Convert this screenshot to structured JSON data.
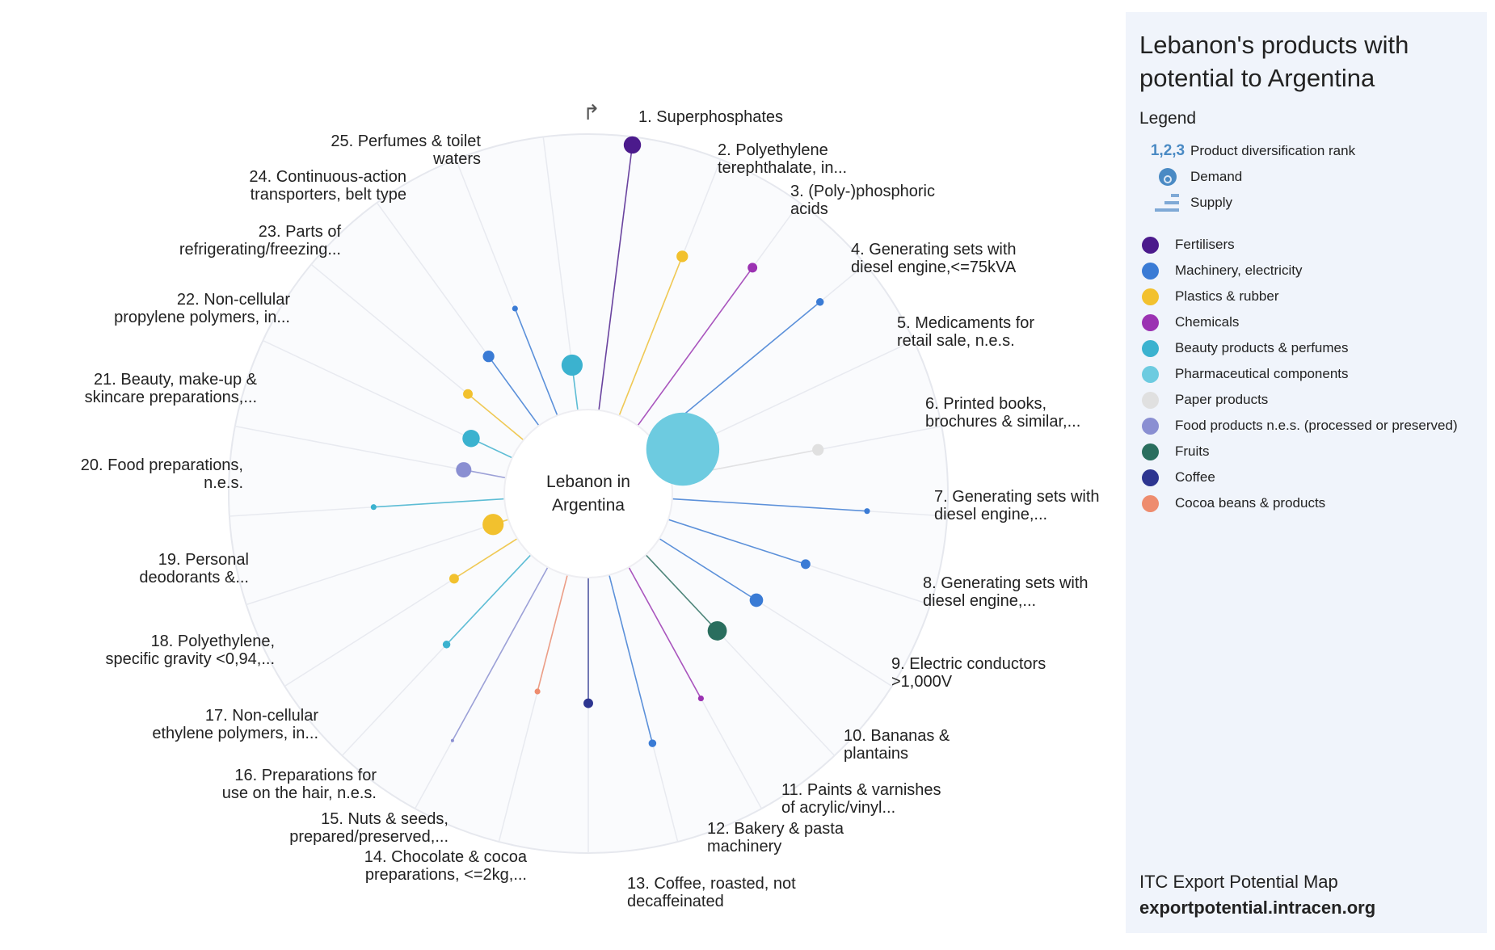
{
  "center_label": [
    "Lebanon in",
    "Argentina"
  ],
  "panel": {
    "title": "Lebanon's products with potential to Argentina",
    "legend_heading": "Legend",
    "keys": [
      {
        "icon": "rank-number-icon",
        "symbol": "1,2,3",
        "label": "Product diversification rank"
      },
      {
        "icon": "demand-bubble-icon",
        "label": "Demand"
      },
      {
        "icon": "supply-bars-icon",
        "label": "Supply"
      }
    ],
    "categories": [
      {
        "name": "Fertilisers",
        "color": "#4b1a8c"
      },
      {
        "name": "Machinery, electricity",
        "color": "#3a7bd5"
      },
      {
        "name": "Plastics & rubber",
        "color": "#f2c12e"
      },
      {
        "name": "Chemicals",
        "color": "#9b32b2"
      },
      {
        "name": "Beauty products & perfumes",
        "color": "#3bb2cf"
      },
      {
        "name": "Pharmaceutical components",
        "color": "#6dcbe0"
      },
      {
        "name": "Paper products",
        "color": "#e0e0e0"
      },
      {
        "name": "Food products n.e.s. (processed or preserved)",
        "color": "#8a8fd2"
      },
      {
        "name": "Fruits",
        "color": "#2a6e5e"
      },
      {
        "name": "Coffee",
        "color": "#2d3590"
      },
      {
        "name": "Cocoa beans & products",
        "color": "#ee8c6e"
      }
    ],
    "source": "ITC Export Potential Map",
    "url": "exportpotential.intracen.org"
  },
  "chart_data": {
    "type": "radial-bubble",
    "title": "Lebanon's products with potential to Argentina",
    "encoding": {
      "angle": "product diversification rank",
      "radius": "supply (0-1 relative)",
      "size": "demand (relative)"
    },
    "products": [
      {
        "rank": 1,
        "lines": [
          "1. Superphosphates"
        ],
        "category": "Fertilisers",
        "supply": 1.0,
        "demand": 9
      },
      {
        "rank": 2,
        "lines": [
          "2. Polyethylene",
          "terephthalate, in..."
        ],
        "category": "Plastics & rubber",
        "supply": 0.64,
        "demand": 6
      },
      {
        "rank": 3,
        "lines": [
          "3. (Poly-)phosphoric",
          "acids"
        ],
        "category": "Chemicals",
        "supply": 0.73,
        "demand": 5
      },
      {
        "rank": 4,
        "lines": [
          "4. Generating sets with",
          "diesel engine,<=75kVA"
        ],
        "category": "Machinery, electricity",
        "supply": 0.81,
        "demand": 4
      },
      {
        "rank": 5,
        "lines": [
          "5. Medicaments for",
          "retail sale, n.e.s."
        ],
        "category": "Pharmaceutical components",
        "supply": 0.0,
        "demand": 38
      },
      {
        "rank": 6,
        "lines": [
          "6. Printed books,",
          "brochures & similar,..."
        ],
        "category": "Paper products",
        "supply": 0.56,
        "demand": 6
      },
      {
        "rank": 7,
        "lines": [
          "7. Generating sets with",
          "diesel engine,..."
        ],
        "category": "Machinery, electricity",
        "supply": 0.73,
        "demand": 3
      },
      {
        "rank": 8,
        "lines": [
          "8. Generating sets with",
          "diesel engine,..."
        ],
        "category": "Machinery, electricity",
        "supply": 0.54,
        "demand": 5
      },
      {
        "rank": 9,
        "lines": [
          "9. Electric conductors",
          ">1,000V"
        ],
        "category": "Machinery, electricity",
        "supply": 0.43,
        "demand": 7
      },
      {
        "rank": 10,
        "lines": [
          "10. Bananas &",
          "plantains"
        ],
        "category": "Fruits",
        "supply": 0.39,
        "demand": 10
      },
      {
        "rank": 11,
        "lines": [
          "11. Paints & varnishes",
          "of acrylic/vinyl..."
        ],
        "category": "Chemicals",
        "supply": 0.56,
        "demand": 3
      },
      {
        "rank": 12,
        "lines": [
          "12. Bakery & pasta",
          "machinery"
        ],
        "category": "Machinery, electricity",
        "supply": 0.65,
        "demand": 4
      },
      {
        "rank": 13,
        "lines": [
          "13. Coffee, roasted, not",
          "decaffeinated"
        ],
        "category": "Coffee",
        "supply": 0.47,
        "demand": 5
      },
      {
        "rank": 14,
        "lines": [
          "14. Chocolate & cocoa",
          "preparations, <=2kg,..."
        ],
        "category": "Cocoa beans & products",
        "supply": 0.45,
        "demand": 3
      },
      {
        "rank": 15,
        "lines": [
          "15. Nuts & seeds,",
          "prepared/preserved,..."
        ],
        "category": "Food products n.e.s. (processed or preserved)",
        "supply": 0.74,
        "demand": 1
      },
      {
        "rank": 16,
        "lines": [
          "16. Preparations for",
          "use on the hair, n.e.s."
        ],
        "category": "Beauty products & perfumes",
        "supply": 0.46,
        "demand": 4
      },
      {
        "rank": 17,
        "lines": [
          "17. Non-cellular",
          "ethylene polymers, in..."
        ],
        "category": "Plastics & rubber",
        "supply": 0.28,
        "demand": 5
      },
      {
        "rank": 18,
        "lines": [
          "18. Polyethylene,",
          "specific gravity <0,94,..."
        ],
        "category": "Plastics & rubber",
        "supply": 0.06,
        "demand": 11
      },
      {
        "rank": 19,
        "lines": [
          "19. Personal",
          "deodorants &..."
        ],
        "category": "Beauty products & perfumes",
        "supply": 0.49,
        "demand": 3
      },
      {
        "rank": 20,
        "lines": [
          "20. Food preparations,",
          "n.e.s."
        ],
        "category": "Food products n.e.s. (processed or preserved)",
        "supply": 0.16,
        "demand": 8
      },
      {
        "rank": 21,
        "lines": [
          "21. Beauty, make-up &",
          "skincare preparations,..."
        ],
        "category": "Beauty products & perfumes",
        "supply": 0.17,
        "demand": 9
      },
      {
        "rank": 22,
        "lines": [
          "22. Non-cellular",
          "propylene polymers, in..."
        ],
        "category": "Plastics & rubber",
        "supply": 0.27,
        "demand": 5
      },
      {
        "rank": 23,
        "lines": [
          "23. Parts of",
          "refrigerating/freezing..."
        ],
        "category": "Machinery, electricity",
        "supply": 0.32,
        "demand": 6
      },
      {
        "rank": 24,
        "lines": [
          "24. Continuous-action",
          "transporters, belt type"
        ],
        "category": "Machinery, electricity",
        "supply": 0.43,
        "demand": 3
      },
      {
        "rank": 25,
        "lines": [
          "25. Perfumes & toilet",
          "waters"
        ],
        "category": "Beauty products & perfumes",
        "supply": 0.17,
        "demand": 11
      }
    ]
  }
}
